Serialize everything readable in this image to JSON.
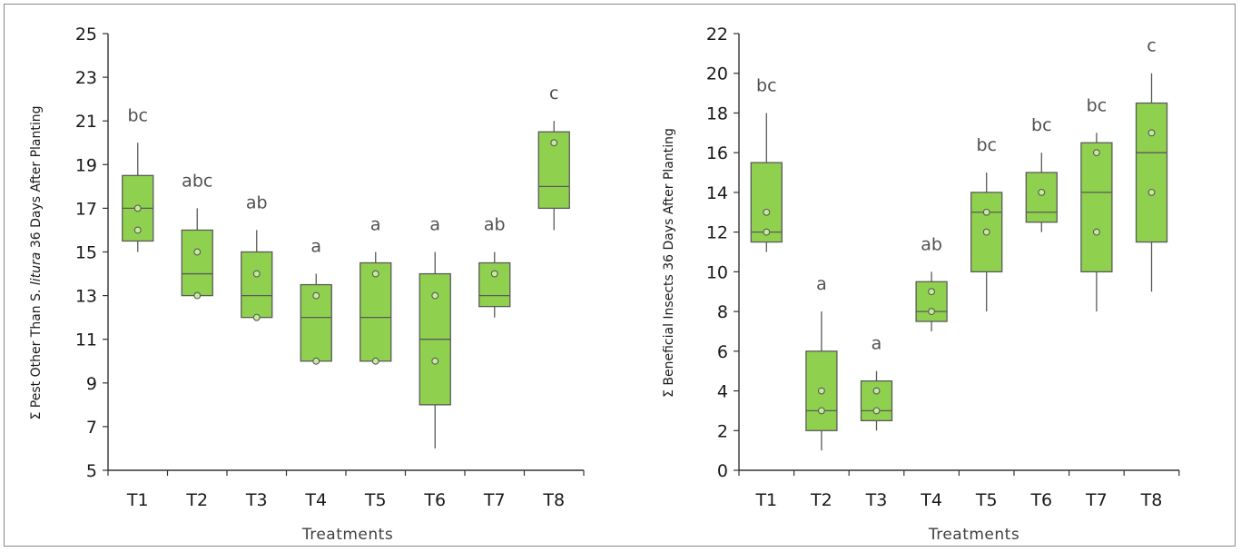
{
  "chart_data": [
    {
      "type": "box",
      "ylabel_prefix": "Σ Pest Other Than S. ",
      "ylabel_italic": "litura",
      "ylabel_suffix": " 36 Days After Planting",
      "xlabel": "Treatments",
      "ylim": [
        5,
        25
      ],
      "yticks": [
        5,
        7,
        9,
        11,
        13,
        15,
        17,
        19,
        21,
        23,
        25
      ],
      "categories": [
        "T1",
        "T2",
        "T3",
        "T4",
        "T5",
        "T6",
        "T7",
        "T8"
      ],
      "boxes": [
        {
          "min": 15,
          "q1": 15.5,
          "median": 17,
          "q3": 18.5,
          "max": 20,
          "points": [
            16,
            17
          ],
          "letter": "bc"
        },
        {
          "min": 13,
          "q1": 13,
          "median": 14,
          "q3": 16,
          "max": 17,
          "points": [
            13,
            15
          ],
          "letter": "abc"
        },
        {
          "min": 12,
          "q1": 12,
          "median": 13,
          "q3": 15,
          "max": 16,
          "points": [
            12,
            14
          ],
          "letter": "ab"
        },
        {
          "min": 10,
          "q1": 10,
          "median": 12,
          "q3": 13.5,
          "max": 14,
          "points": [
            10,
            13
          ],
          "letter": "a"
        },
        {
          "min": 10,
          "q1": 10,
          "median": 12,
          "q3": 14.5,
          "max": 15,
          "points": [
            10,
            14
          ],
          "letter": "a"
        },
        {
          "min": 6,
          "q1": 8,
          "median": 11,
          "q3": 14,
          "max": 15,
          "points": [
            10,
            13
          ],
          "letter": "a"
        },
        {
          "min": 12,
          "q1": 12.5,
          "median": 13,
          "q3": 14.5,
          "max": 15,
          "points": [
            14
          ],
          "letter": "ab"
        },
        {
          "min": 16,
          "q1": 17,
          "median": 18,
          "q3": 20.5,
          "max": 21,
          "points": [
            20
          ],
          "letter": "c"
        }
      ]
    },
    {
      "type": "box",
      "ylabel_prefix": "Σ Beneficial Insects 36 Days After Planting",
      "ylabel_italic": "",
      "ylabel_suffix": "",
      "xlabel": "Treatments",
      "ylim": [
        0,
        22
      ],
      "yticks": [
        0,
        2,
        4,
        6,
        8,
        10,
        12,
        14,
        16,
        18,
        20,
        22
      ],
      "categories": [
        "T1",
        "T2",
        "T3",
        "T4",
        "T5",
        "T6",
        "T7",
        "T8"
      ],
      "boxes": [
        {
          "min": 11,
          "q1": 11.5,
          "median": 12,
          "q3": 15.5,
          "max": 18,
          "points": [
            12,
            13
          ],
          "letter": "bc"
        },
        {
          "min": 1,
          "q1": 2,
          "median": 3,
          "q3": 6,
          "max": 8,
          "points": [
            3,
            4
          ],
          "letter": "a"
        },
        {
          "min": 2,
          "q1": 2.5,
          "median": 3,
          "q3": 4.5,
          "max": 5,
          "points": [
            3,
            4
          ],
          "letter": "a"
        },
        {
          "min": 7,
          "q1": 7.5,
          "median": 8,
          "q3": 9.5,
          "max": 10,
          "points": [
            8,
            9
          ],
          "letter": "ab"
        },
        {
          "min": 8,
          "q1": 10,
          "median": 13,
          "q3": 14,
          "max": 15,
          "points": [
            12,
            13
          ],
          "letter": "bc"
        },
        {
          "min": 12,
          "q1": 12.5,
          "median": 13,
          "q3": 15,
          "max": 16,
          "points": [
            14
          ],
          "letter": "bc"
        },
        {
          "min": 8,
          "q1": 10,
          "median": 14,
          "q3": 16.5,
          "max": 17,
          "points": [
            12,
            16
          ],
          "letter": "bc"
        },
        {
          "min": 9,
          "q1": 11.5,
          "median": 16,
          "q3": 18.5,
          "max": 20,
          "points": [
            14,
            17
          ],
          "letter": "c"
        }
      ]
    }
  ],
  "colors": {
    "box_fill": "#8fd14f",
    "box_stroke": "#5a5a5a",
    "axis": "#333333",
    "point_fill": "#c4eb9a"
  }
}
